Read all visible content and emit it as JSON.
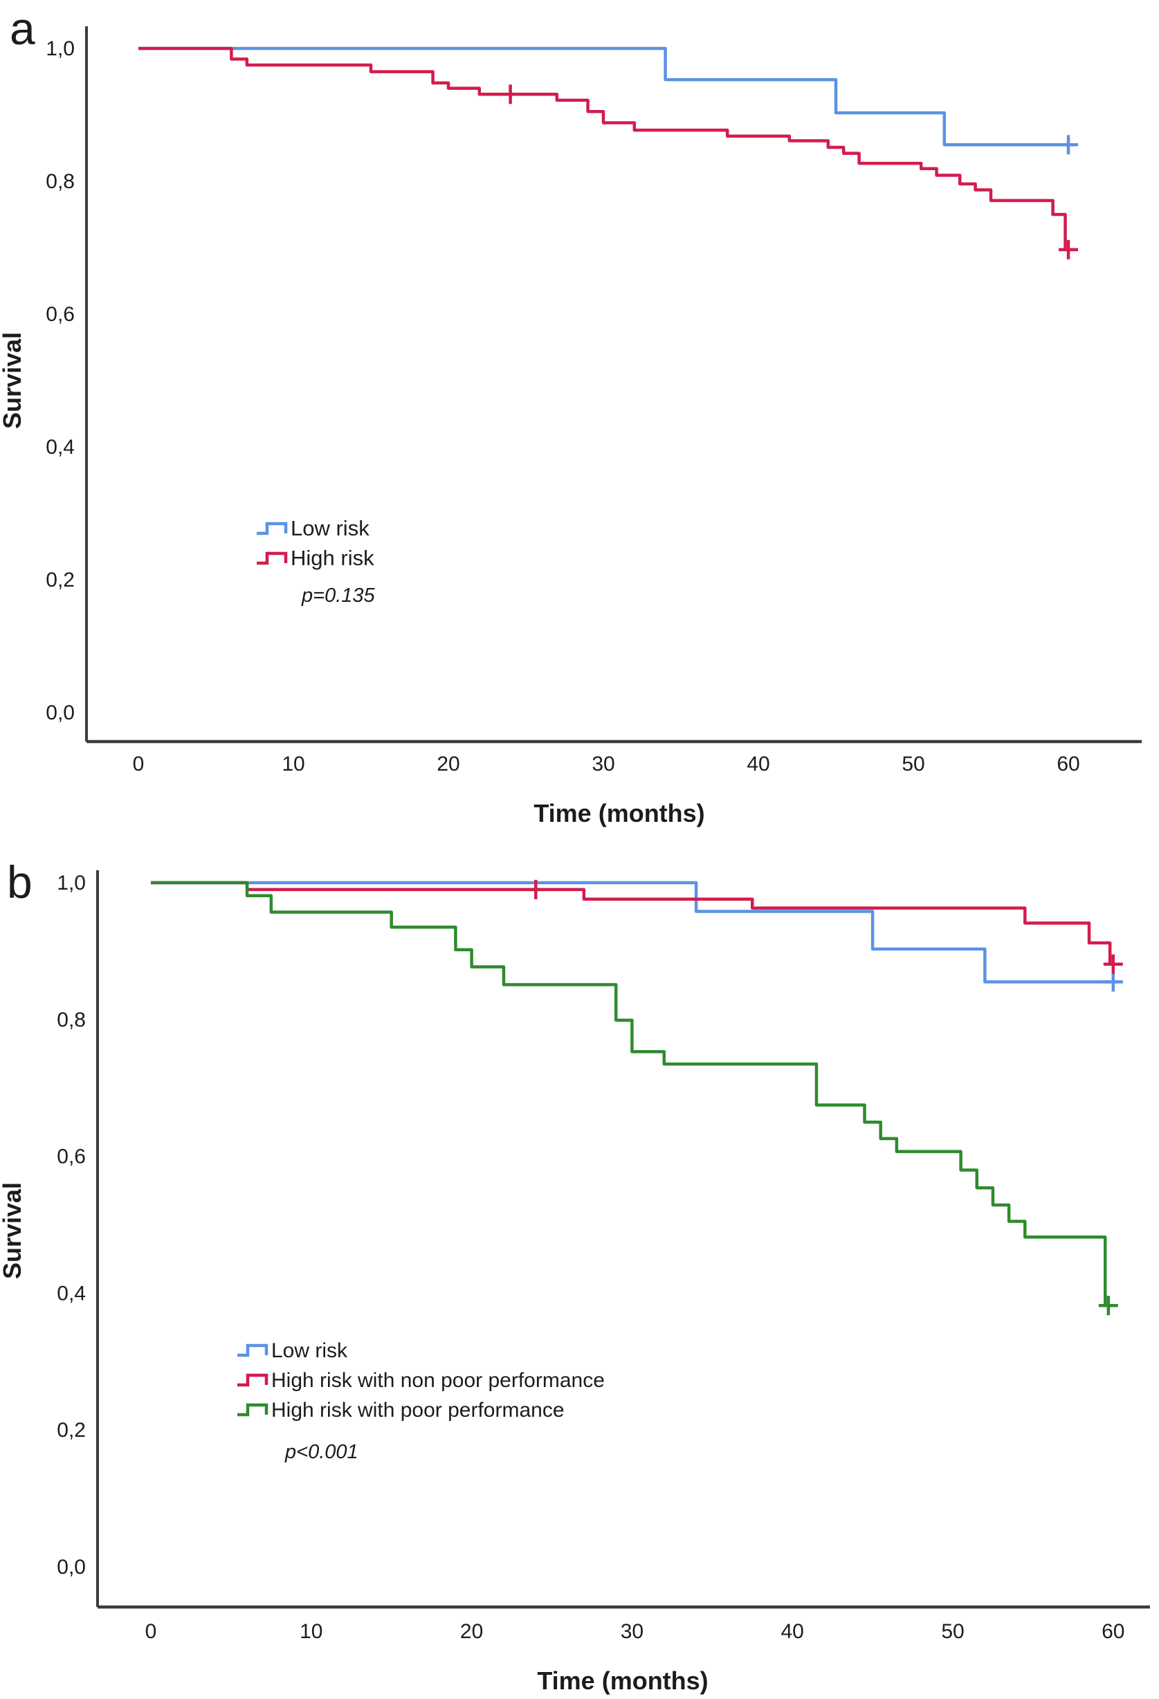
{
  "figure": {
    "background": "#ffffff",
    "description": "Kaplan-Meier survival curves, two panels"
  },
  "chart_data": [
    {
      "id": "a",
      "panel_label": "a",
      "type": "line",
      "subtype": "kaplan-meier-step",
      "xlabel": "Time (months)",
      "ylabel": "Survival",
      "x_ticks": [
        0,
        10,
        20,
        30,
        40,
        50,
        60
      ],
      "y_tick_labels": [
        "1,0",
        "0,8",
        "0,6",
        "0,4",
        "0,2",
        "0,0"
      ],
      "y_tick_values": [
        1.0,
        0.8,
        0.6,
        0.4,
        0.2,
        0.0
      ],
      "xlim": [
        0,
        64
      ],
      "ylim": [
        0,
        1.04
      ],
      "grid": false,
      "legend_position": "inside-lower-left",
      "p_value": "p=0.135",
      "series": [
        {
          "name": "Low risk",
          "color": "#5b92e5",
          "start": [
            0,
            1.0
          ],
          "steps": [
            [
              34,
              0.953
            ],
            [
              45,
              0.903
            ],
            [
              52,
              0.855
            ]
          ],
          "end_t": 60.4,
          "censors": [
            [
              60,
              0.855
            ]
          ]
        },
        {
          "name": "High risk",
          "color": "#d31c4e",
          "start": [
            0,
            1.0
          ],
          "steps": [
            [
              6,
              0.984
            ],
            [
              7,
              0.975
            ],
            [
              15,
              0.965
            ],
            [
              19,
              0.948
            ],
            [
              20,
              0.94
            ],
            [
              22,
              0.931
            ],
            [
              27,
              0.922
            ],
            [
              29,
              0.905
            ],
            [
              30,
              0.888
            ],
            [
              32,
              0.877
            ],
            [
              38,
              0.868
            ],
            [
              42,
              0.861
            ],
            [
              44.5,
              0.851
            ],
            [
              45.5,
              0.842
            ],
            [
              46.5,
              0.827
            ],
            [
              50.5,
              0.819
            ],
            [
              51.5,
              0.809
            ],
            [
              53,
              0.796
            ],
            [
              54,
              0.787
            ],
            [
              55,
              0.771
            ],
            [
              59,
              0.75
            ],
            [
              59.8,
              0.697
            ]
          ],
          "end_t": 60.2,
          "censors": [
            [
              24,
              0.931
            ],
            [
              60,
              0.697
            ]
          ]
        }
      ]
    },
    {
      "id": "b",
      "panel_label": "b",
      "type": "line",
      "subtype": "kaplan-meier-step",
      "xlabel": "Time (months)",
      "ylabel": "Survival",
      "x_ticks": [
        0,
        10,
        20,
        30,
        40,
        50,
        60
      ],
      "y_tick_labels": [
        "1,0",
        "0,8",
        "0,6",
        "0,4",
        "0,2",
        "0,0"
      ],
      "y_tick_values": [
        1.0,
        0.8,
        0.6,
        0.4,
        0.2,
        0.0
      ],
      "xlim": [
        0,
        63
      ],
      "ylim": [
        0,
        1.04
      ],
      "grid": false,
      "legend_position": "inside-lower-left",
      "p_value": "p<0.001",
      "series": [
        {
          "name": "Low risk",
          "color": "#5b92e5",
          "start": [
            0,
            1.0
          ],
          "steps": [
            [
              34,
              0.958
            ],
            [
              45,
              0.903
            ],
            [
              52,
              0.855
            ]
          ],
          "end_t": 60.4,
          "censors": [
            [
              60,
              0.855
            ]
          ]
        },
        {
          "name": "High risk with non poor performance",
          "color": "#d31c4e",
          "start": [
            0,
            1.0
          ],
          "steps": [
            [
              6,
              0.99
            ],
            [
              27,
              0.976
            ],
            [
              37.5,
              0.963
            ],
            [
              54.5,
              0.941
            ],
            [
              58.5,
              0.912
            ],
            [
              59.8,
              0.881
            ]
          ],
          "end_t": 60.4,
          "censors": [
            [
              24,
              0.99
            ],
            [
              60,
              0.881
            ]
          ]
        },
        {
          "name": "High risk with poor performance",
          "color": "#2e8b2e",
          "start": [
            0,
            1.0
          ],
          "steps": [
            [
              6,
              0.981
            ],
            [
              7.5,
              0.957
            ],
            [
              15,
              0.935
            ],
            [
              19,
              0.902
            ],
            [
              20,
              0.877
            ],
            [
              22,
              0.851
            ],
            [
              29,
              0.799
            ],
            [
              30,
              0.753
            ],
            [
              32,
              0.735
            ],
            [
              41.5,
              0.675
            ],
            [
              44.5,
              0.65
            ],
            [
              45.5,
              0.626
            ],
            [
              46.5,
              0.607
            ],
            [
              50.5,
              0.58
            ],
            [
              51.5,
              0.554
            ],
            [
              52.5,
              0.529
            ],
            [
              53.5,
              0.505
            ],
            [
              54.5,
              0.482
            ],
            [
              59.5,
              0.382
            ]
          ],
          "end_t": 60.0,
          "censors": [
            [
              59.7,
              0.382
            ]
          ]
        }
      ]
    }
  ]
}
